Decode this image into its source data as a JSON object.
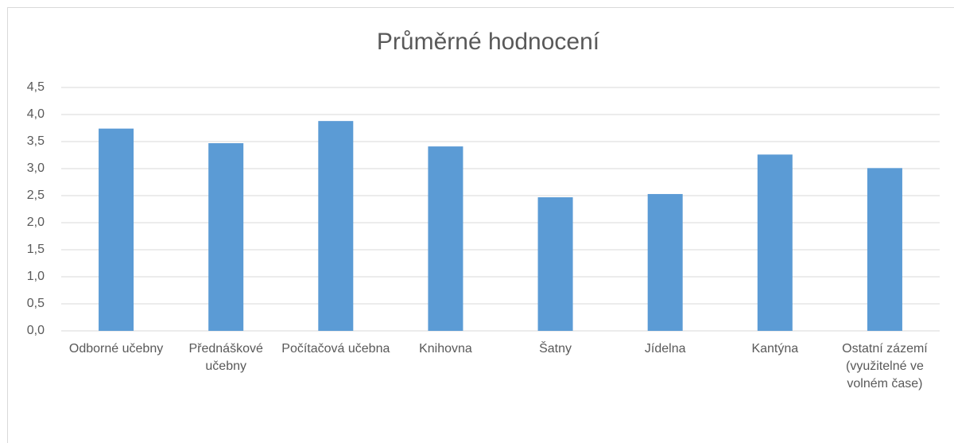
{
  "chart_data": {
    "type": "bar",
    "title": "Průměrné hodnocení",
    "categories": [
      "Odborné učebny",
      "Přednáškové učebny",
      "Počítačová učebna",
      "Knihovna",
      "Šatny",
      "Jídelna",
      "Kantýna",
      "Ostatní zázemí (využitelné ve volném čase)"
    ],
    "values": [
      3.74,
      3.47,
      3.88,
      3.41,
      2.47,
      2.53,
      3.26,
      3.01
    ],
    "color": "#5b9bd5",
    "ylim": [
      0,
      4.5
    ],
    "yticks": [
      {
        "value": 0,
        "label": "0,0"
      },
      {
        "value": 0.5,
        "label": "0,5"
      },
      {
        "value": 1,
        "label": "1,0"
      },
      {
        "value": 1.5,
        "label": "1,5"
      },
      {
        "value": 2,
        "label": "2,0"
      },
      {
        "value": 2.5,
        "label": "2,5"
      },
      {
        "value": 3,
        "label": "3,0"
      },
      {
        "value": 3.5,
        "label": "3,5"
      },
      {
        "value": 4,
        "label": "4,0"
      },
      {
        "value": 4.5,
        "label": "4,5"
      }
    ],
    "grid": true
  }
}
